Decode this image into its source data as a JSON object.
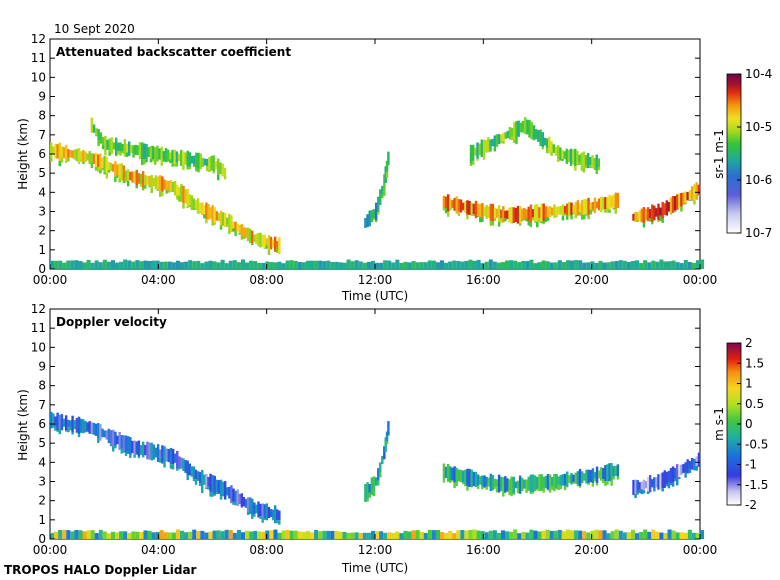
{
  "date_label": "10 Sept 2020",
  "footer": "TROPOS HALO Doppler Lidar",
  "chart_data": [
    {
      "type": "heatmap",
      "title": "Attenuated backscatter coefficient",
      "xlabel": "Time (UTC)",
      "ylabel": "Height (km)",
      "xlim": [
        0,
        24
      ],
      "ylim": [
        0,
        12
      ],
      "x_ticks": [
        "00:00",
        "04:00",
        "08:00",
        "12:00",
        "16:00",
        "20:00",
        "00:00"
      ],
      "y_ticks": [
        "0",
        "1",
        "2",
        "3",
        "4",
        "5",
        "6",
        "7",
        "8",
        "9",
        "10",
        "11",
        "12"
      ],
      "colorbar": {
        "label": "sr-1 m-1",
        "ticks": [
          "10-7",
          "10-6",
          "10-5",
          "10-4"
        ],
        "scale": "log",
        "range": [
          1e-07,
          0.0001
        ]
      },
      "features": [
        {
          "name": "near-surface aerosol layer",
          "t_start": 0.0,
          "t_end": 24.0,
          "h_bottom": 0.0,
          "h_top": 0.5,
          "level": 0.35
        },
        {
          "name": "descending cloud band morning",
          "points": [
            [
              0.0,
              6.2
            ],
            [
              1.5,
              5.8
            ],
            [
              3.0,
              4.8
            ],
            [
              4.5,
              4.3
            ],
            [
              5.5,
              3.2
            ],
            [
              6.5,
              2.5
            ],
            [
              7.5,
              1.6
            ],
            [
              8.5,
              1.2
            ]
          ],
          "level": 0.85
        },
        {
          "name": "high cloud patches morning",
          "points": [
            [
              1.5,
              7.5
            ],
            [
              2.0,
              6.5
            ],
            [
              6.0,
              5.5
            ],
            [
              6.5,
              5.0
            ]
          ],
          "level": 0.7
        },
        {
          "name": "midday clouds",
          "points": [
            [
              11.6,
              2.4
            ],
            [
              12.0,
              3.0
            ],
            [
              12.3,
              4.5
            ],
            [
              12.5,
              6.2
            ]
          ],
          "level": 0.6
        },
        {
          "name": "afternoon cloud layer",
          "points": [
            [
              14.5,
              3.5
            ],
            [
              16.0,
              3.0
            ],
            [
              17.0,
              2.8
            ],
            [
              18.5,
              3.0
            ],
            [
              20.0,
              3.3
            ],
            [
              21.0,
              3.6
            ]
          ],
          "level": 0.9
        },
        {
          "name": "evening rising layer",
          "points": [
            [
              21.5,
              2.7
            ],
            [
              22.5,
              3.0
            ],
            [
              23.5,
              3.8
            ],
            [
              24.0,
              4.2
            ]
          ],
          "level": 0.95
        },
        {
          "name": "high patches afternoon",
          "points": [
            [
              15.5,
              6.0
            ],
            [
              17.5,
              7.5
            ],
            [
              18.8,
              6.0
            ],
            [
              20.3,
              5.5
            ]
          ],
          "level": 0.7
        }
      ]
    },
    {
      "type": "heatmap",
      "title": "Doppler velocity",
      "xlabel": "Time (UTC)",
      "ylabel": "Height (km)",
      "xlim": [
        0,
        24
      ],
      "ylim": [
        0,
        12
      ],
      "x_ticks": [
        "00:00",
        "04:00",
        "08:00",
        "12:00",
        "16:00",
        "20:00",
        "00:00"
      ],
      "y_ticks": [
        "0",
        "1",
        "2",
        "3",
        "4",
        "5",
        "6",
        "7",
        "8",
        "9",
        "10",
        "11",
        "12"
      ],
      "colorbar": {
        "label": "m s-1",
        "ticks": [
          "2",
          "1.5",
          "1",
          "0.5",
          "0",
          "-0.5",
          "-1",
          "-1.5",
          "-2"
        ],
        "scale": "linear",
        "range": [
          -2,
          2
        ]
      },
      "features": [
        {
          "name": "near-surface mixed velocities",
          "t_start": 0.0,
          "t_end": 24.0,
          "h_bottom": 0.0,
          "h_top": 0.5,
          "value": 0.0
        },
        {
          "name": "descending cloud band morning",
          "points": [
            [
              0.0,
              6.2
            ],
            [
              1.5,
              5.8
            ],
            [
              3.0,
              4.8
            ],
            [
              4.5,
              4.3
            ],
            [
              5.5,
              3.2
            ],
            [
              6.5,
              2.5
            ],
            [
              7.5,
              1.6
            ],
            [
              8.5,
              1.2
            ]
          ],
          "value": -1.0
        },
        {
          "name": "midday clouds",
          "points": [
            [
              11.6,
              2.4
            ],
            [
              12.0,
              3.0
            ],
            [
              12.3,
              4.5
            ],
            [
              12.5,
              6.2
            ]
          ],
          "value": -0.5
        },
        {
          "name": "afternoon cloud layer",
          "points": [
            [
              14.5,
              3.5
            ],
            [
              16.0,
              3.0
            ],
            [
              17.0,
              2.8
            ],
            [
              18.5,
              3.0
            ],
            [
              20.0,
              3.3
            ],
            [
              21.0,
              3.6
            ]
          ],
          "value": -0.4
        },
        {
          "name": "evening rising layer",
          "points": [
            [
              21.5,
              2.7
            ],
            [
              22.5,
              3.0
            ],
            [
              23.5,
              3.8
            ],
            [
              24.0,
              4.2
            ]
          ],
          "value": -1.2
        }
      ]
    }
  ]
}
